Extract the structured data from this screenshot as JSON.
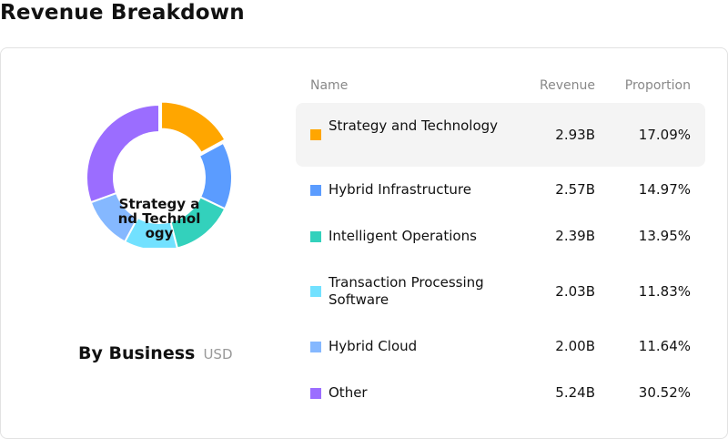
{
  "page_title": "Revenue Breakdown",
  "center_label": "Strategy and Technology",
  "caption": {
    "main": "By Business",
    "unit": "USD"
  },
  "table": {
    "headers": {
      "name": "Name",
      "revenue": "Revenue",
      "proportion": "Proportion"
    }
  },
  "chart_data": {
    "type": "pie",
    "title": "Revenue Breakdown",
    "subtitle": "By Business",
    "unit": "USD",
    "selected": "Strategy and Technology",
    "categories": [
      "Strategy and Technology",
      "Hybrid Infrastructure",
      "Intelligent Operations",
      "Transaction Processing Software",
      "Hybrid Cloud",
      "Other"
    ],
    "revenue_labels": [
      "2.93B",
      "2.57B",
      "2.39B",
      "2.03B",
      "2.00B",
      "5.24B"
    ],
    "revenue": [
      2.93,
      2.57,
      2.39,
      2.03,
      2.0,
      5.24
    ],
    "proportion_labels": [
      "17.09%",
      "14.97%",
      "13.95%",
      "11.83%",
      "11.64%",
      "30.52%"
    ],
    "values": [
      17.09,
      14.97,
      13.95,
      11.83,
      11.64,
      30.52
    ],
    "colors": [
      "#ffa600",
      "#5b9cff",
      "#33d1bc",
      "#72e1ff",
      "#85b8ff",
      "#9b6dff"
    ]
  }
}
